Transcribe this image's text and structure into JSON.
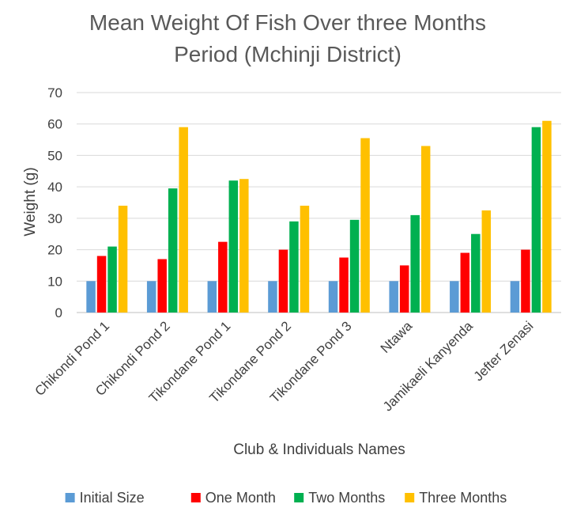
{
  "chart_data": {
    "type": "bar",
    "title_lines": [
      "Mean Weight Of Fish Over three Months",
      "Period (Mchinji District)"
    ],
    "xlabel": "Club & Individuals Names",
    "ylabel": "Weight (g)",
    "ylim": [
      0,
      70
    ],
    "yticks": [
      0,
      10,
      20,
      30,
      40,
      50,
      60,
      70
    ],
    "grid": true,
    "legend_position": "bottom",
    "categories": [
      "Chikondi Pond 1",
      "Chikondi Pond 2",
      "Tikondane Pond 1",
      "Tikondane Pond 2",
      "Tikondane Pond 3",
      "Ntawa",
      "Jamikaeli Kanyenda",
      "Jefter Zenasi"
    ],
    "series": [
      {
        "name": "Initial Size",
        "color": "#5b9bd5",
        "values": [
          10,
          10,
          10,
          10,
          10,
          10,
          10,
          10
        ]
      },
      {
        "name": "One Month",
        "color": "#ff0000",
        "values": [
          18,
          17,
          22.5,
          20,
          17.5,
          15,
          19,
          20
        ]
      },
      {
        "name": "Two Months",
        "color": "#00b050",
        "values": [
          21,
          39.5,
          42,
          29,
          29.5,
          31,
          25,
          59
        ]
      },
      {
        "name": "Three Months",
        "color": "#ffc000",
        "values": [
          34,
          59,
          42.5,
          34,
          55.5,
          53,
          32.5,
          61
        ]
      }
    ]
  }
}
